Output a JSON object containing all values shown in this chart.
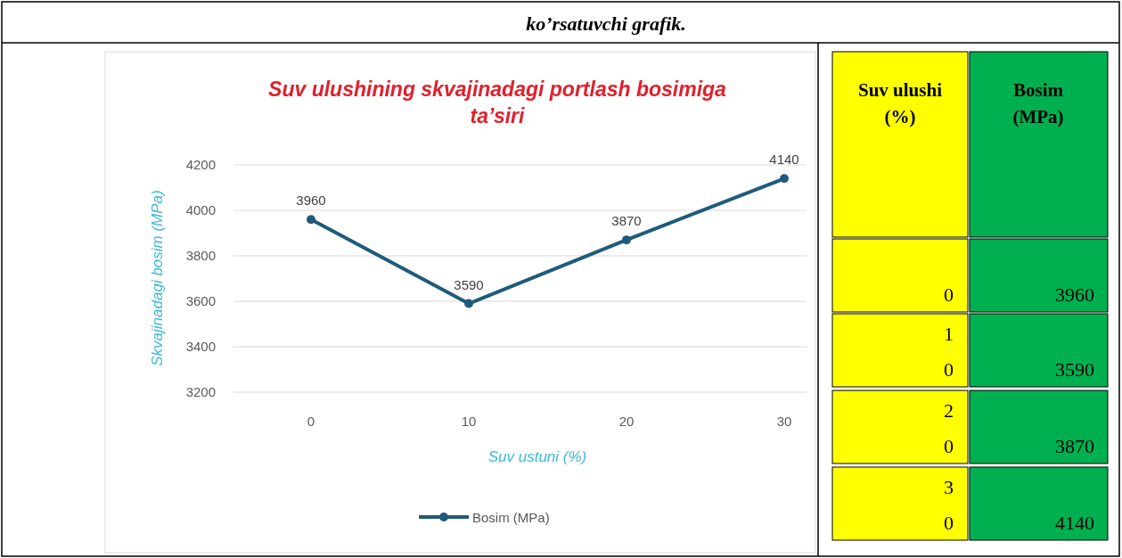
{
  "chart_data": [
    {
      "type": "line",
      "title": "Suv ulushining skvajinadagi portlash bosimiga ta’siri",
      "xlabel": "Suv ustuni (%)",
      "ylabel": "Skvajinadagi bosim (MPa)",
      "categories": [
        "0",
        "10",
        "20",
        "30"
      ],
      "series": [
        {
          "name": "Bosim (MPa)",
          "color": "#1f5b7a",
          "values": [
            3960,
            3590,
            3870,
            4140
          ]
        }
      ],
      "ylim": [
        3200,
        4200
      ],
      "yticks": [
        3200,
        3400,
        3600,
        3800,
        4000,
        4200
      ],
      "grid": "y",
      "legend": "bottom",
      "marker": "circle",
      "data_labels": true,
      "annotations": [
        "ko’rsatuvchi grafik."
      ]
    },
    {
      "type": "other",
      "annotations": [
        "Suv ulushi (%)",
        "Bosim (MPa)",
        "0",
        "3960",
        "10",
        "3590",
        "20",
        "3870",
        "30",
        "4140"
      ]
    }
  ]
}
